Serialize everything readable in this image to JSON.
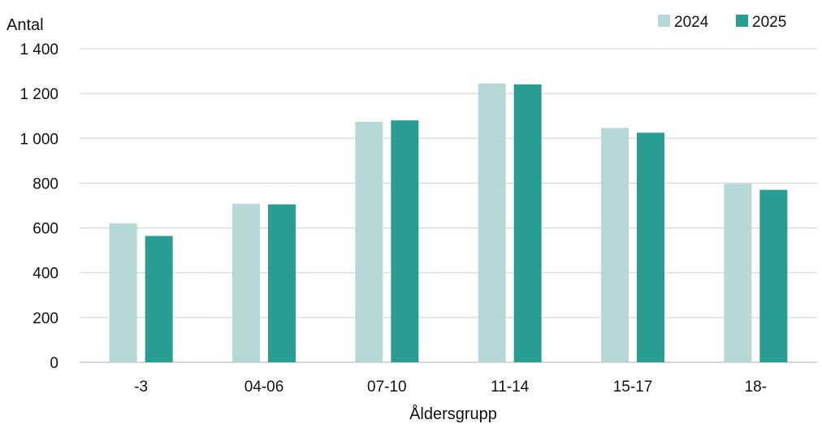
{
  "chart_data": {
    "type": "bar",
    "ylabel": "Antal",
    "xlabel": "Åldersgrupp",
    "categories": [
      "-3",
      "04-06",
      "07-10",
      "11-14",
      "15-17",
      "18-"
    ],
    "series": [
      {
        "name": "2024",
        "values": [
          620,
          707,
          1074,
          1245,
          1046,
          797
        ],
        "color": "#b6d8d6"
      },
      {
        "name": "2025",
        "values": [
          564,
          705,
          1080,
          1241,
          1025,
          770
        ],
        "color": "#2a9d93"
      }
    ],
    "ylim": [
      0,
      1400
    ],
    "yticks": [
      0,
      200,
      400,
      600,
      800,
      1000,
      1200,
      1400
    ],
    "ytick_labels": [
      "0",
      "200",
      "400",
      "600",
      "800",
      "1 000",
      "1 200",
      "1 400"
    ],
    "grid": true,
    "legend": "top-right",
    "gridline_color": "#d9d9d9"
  }
}
